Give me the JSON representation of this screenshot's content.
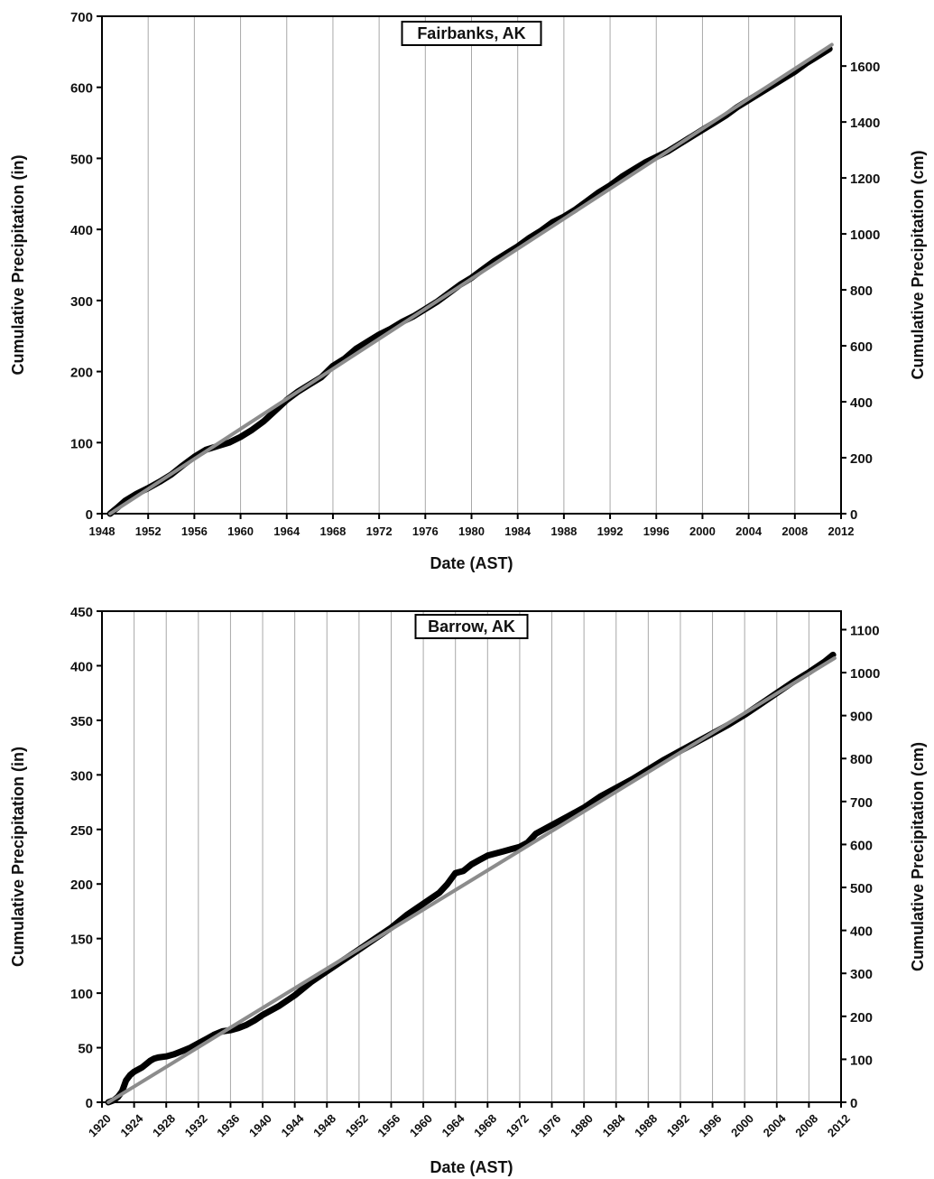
{
  "chart_data": [
    {
      "type": "line",
      "title": "Fairbanks, AK",
      "xlabel": "Date (AST)",
      "ylabel": "Cumulative Precipitation (in)",
      "y2label": "Cumulative Precipitation (cm)",
      "xlim": [
        1948,
        2012
      ],
      "ylim": [
        0,
        700
      ],
      "y2lim": [
        0,
        1778
      ],
      "x_ticks": [
        "1948",
        "1952",
        "1956",
        "1960",
        "1964",
        "1968",
        "1972",
        "1976",
        "1980",
        "1984",
        "1988",
        "1992",
        "1996",
        "2000",
        "2004",
        "2008",
        "2012"
      ],
      "y_ticks": [
        "0",
        "100",
        "200",
        "300",
        "400",
        "500",
        "600",
        "700"
      ],
      "y2_ticks": [
        "0",
        "200",
        "400",
        "600",
        "800",
        "1000",
        "1200",
        "1400",
        "1600"
      ],
      "vertical_gridlines": true,
      "series": [
        {
          "color": "#000000",
          "x": [
            1948.7,
            1949.3,
            1950,
            1951,
            1952,
            1953,
            1954,
            1955,
            1956,
            1957,
            1958,
            1959,
            1960,
            1961,
            1962,
            1963,
            1964,
            1965,
            1966,
            1967,
            1968,
            1969,
            1970,
            1971,
            1972,
            1973,
            1974,
            1975,
            1976,
            1977,
            1978,
            1979,
            1980,
            1981,
            1982,
            1983,
            1984,
            1985,
            1986,
            1987,
            1988,
            1989,
            1990,
            1991,
            1992,
            1993,
            1994,
            1995,
            1996,
            1997,
            1998,
            1999,
            2000,
            2001,
            2002,
            2003,
            2004,
            2005,
            2006,
            2007,
            2008,
            2009,
            2010,
            2011
          ],
          "y": [
            0,
            8,
            18,
            28,
            36,
            45,
            55,
            68,
            80,
            90,
            95,
            100,
            108,
            118,
            130,
            145,
            160,
            172,
            182,
            192,
            208,
            218,
            232,
            242,
            252,
            260,
            270,
            278,
            288,
            298,
            310,
            322,
            332,
            344,
            356,
            366,
            376,
            388,
            398,
            410,
            418,
            428,
            440,
            452,
            462,
            474,
            484,
            494,
            502,
            510,
            520,
            530,
            540,
            550,
            560,
            572,
            582,
            592,
            602,
            612,
            622,
            634,
            644,
            654
          ]
        },
        {
          "color": "#8c8c8c",
          "x": [
            1948.7,
            2011.2
          ],
          "y": [
            0,
            660
          ]
        }
      ]
    },
    {
      "type": "line",
      "title": "Barrow, AK",
      "xlabel": "Date (AST)",
      "ylabel": "Cumulative Precipitation (in)",
      "y2label": "Cumulative Precipitation (cm)",
      "xlim": [
        1920,
        2012
      ],
      "ylim": [
        0,
        450
      ],
      "y2lim": [
        0,
        1143
      ],
      "x_ticks": [
        "1920",
        "1924",
        "1928",
        "1932",
        "1936",
        "1940",
        "1944",
        "1948",
        "1952",
        "1956",
        "1960",
        "1964",
        "1968",
        "1972",
        "1976",
        "1980",
        "1984",
        "1988",
        "1992",
        "1996",
        "2000",
        "2004",
        "2008",
        "2012"
      ],
      "y_ticks": [
        "0",
        "50",
        "100",
        "150",
        "200",
        "250",
        "300",
        "350",
        "400",
        "450"
      ],
      "y2_ticks": [
        "0",
        "100",
        "200",
        "300",
        "400",
        "500",
        "600",
        "700",
        "800",
        "900",
        "1000",
        "1100"
      ],
      "vertical_gridlines": true,
      "series": [
        {
          "color": "#000000",
          "x": [
            1920.8,
            1921.5,
            1922,
            1922.5,
            1923,
            1923.5,
            1924,
            1925,
            1926,
            1926.5,
            1927,
            1928,
            1929,
            1930,
            1931,
            1932,
            1933,
            1934,
            1935,
            1936,
            1937,
            1938,
            1939,
            1940,
            1942,
            1944,
            1946,
            1948,
            1950,
            1952,
            1954,
            1956,
            1958,
            1960,
            1962,
            1963,
            1964,
            1965,
            1966,
            1967,
            1968,
            1969,
            1970,
            1971,
            1972,
            1973,
            1974,
            1976,
            1978,
            1980,
            1982,
            1984,
            1986,
            1988,
            1990,
            1992,
            1994,
            1996,
            1998,
            2000,
            2002,
            2004,
            2006,
            2008,
            2010,
            2011
          ],
          "y": [
            0,
            2,
            5,
            10,
            20,
            25,
            28,
            32,
            38,
            40,
            41,
            42,
            44,
            47,
            50,
            54,
            58,
            62,
            65,
            66,
            68,
            71,
            75,
            80,
            88,
            98,
            110,
            120,
            130,
            140,
            150,
            160,
            172,
            182,
            192,
            200,
            210,
            212,
            218,
            222,
            226,
            228,
            230,
            232,
            234,
            238,
            246,
            254,
            262,
            270,
            280,
            288,
            296,
            305,
            314,
            322,
            330,
            338,
            346,
            355,
            365,
            375,
            385,
            394,
            404,
            410
          ]
        },
        {
          "color": "#8c8c8c",
          "x": [
            1920.8,
            2011.2
          ],
          "y": [
            0,
            407
          ]
        }
      ]
    }
  ]
}
